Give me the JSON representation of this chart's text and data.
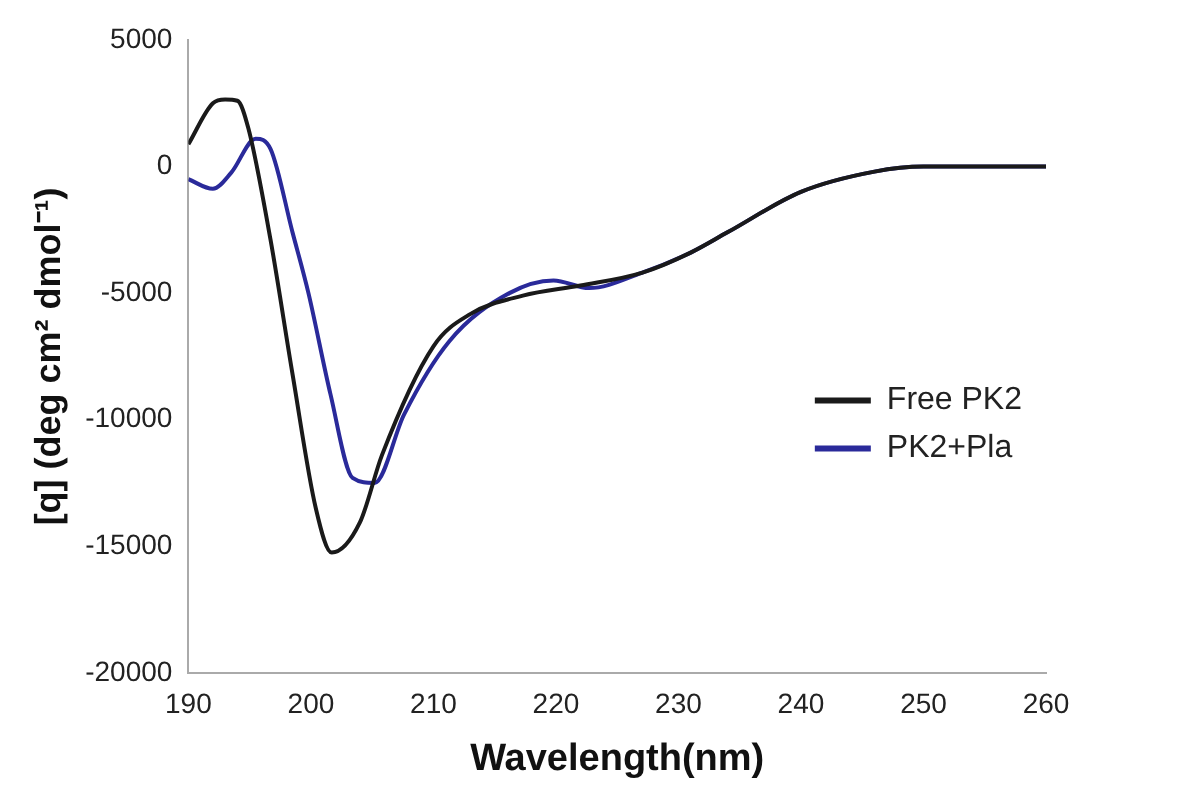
{
  "chart_data": {
    "type": "line",
    "xlabel": "Wavelength(nm)",
    "ylabel": "[q] (deg cm² dmol⁻¹)",
    "xlim": [
      190,
      260
    ],
    "xticks": [
      190,
      200,
      210,
      220,
      230,
      240,
      250,
      260
    ],
    "ylim": [
      -20000,
      5000
    ],
    "yticks": [
      -20000,
      -15000,
      -10000,
      -5000,
      0,
      5000
    ],
    "grid": false,
    "legend": "right",
    "marker": "none",
    "line_style": "solid",
    "series": [
      {
        "name": "Free PK2",
        "color": "#1a1a1a",
        "x": [
          190,
          192,
          193,
          194,
          194.9,
          196.7,
          198.5,
          200.4,
          201.7,
          204,
          205.8,
          210,
          213,
          217.3,
          222,
          227,
          231,
          234,
          240,
          246,
          250,
          260
        ],
        "values": [
          880,
          2500,
          2650,
          2600,
          1500,
          -2880,
          -8200,
          -13500,
          -15250,
          -14060,
          -11400,
          -7100,
          -5830,
          -5100,
          -4700,
          -4200,
          -3400,
          -2600,
          -1000,
          -200,
          0,
          0
        ]
      },
      {
        "name": "PK2+Pla",
        "color": "#2a2a9a",
        "x": [
          190,
          192,
          193.5,
          195.5,
          196.7,
          198.5,
          199.8,
          201.6,
          203.4,
          205.2,
          207.6,
          211.3,
          216.2,
          219.8,
          222.7,
          227,
          231,
          234,
          240,
          246,
          250,
          260
        ],
        "values": [
          -500,
          -880,
          -240,
          1100,
          700,
          -2600,
          -5000,
          -9000,
          -12300,
          -12500,
          -9800,
          -6900,
          -5000,
          -4500,
          -4800,
          -4200,
          -3400,
          -2600,
          -1000,
          -200,
          0,
          0
        ]
      }
    ]
  }
}
